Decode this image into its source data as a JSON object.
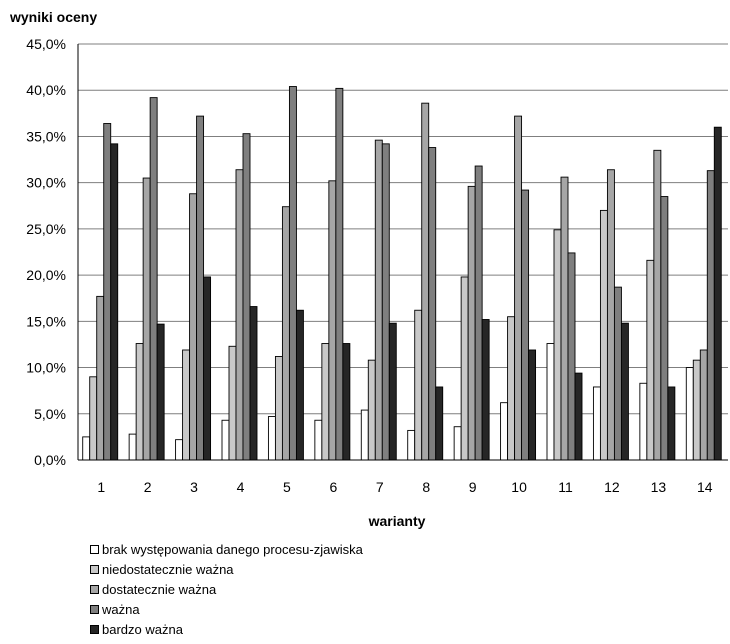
{
  "chart_data": {
    "type": "bar",
    "title": "wyniki oceny",
    "xlabel": "warianty",
    "ylabel": "",
    "ylim": [
      0,
      45
    ],
    "yticks": [
      "0,0%",
      "5,0%",
      "10,0%",
      "15,0%",
      "20,0%",
      "25,0%",
      "30,0%",
      "35,0%",
      "40,0%",
      "45,0%"
    ],
    "grid": true,
    "legend_position": "bottom-left",
    "categories": [
      "1",
      "2",
      "3",
      "4",
      "5",
      "6",
      "7",
      "8",
      "9",
      "10",
      "11",
      "12",
      "13",
      "14"
    ],
    "series": [
      {
        "name": "brak występowania danego procesu-zjawiska",
        "color": "#ffffff",
        "values": [
          2.5,
          2.8,
          2.2,
          4.3,
          4.7,
          4.3,
          5.4,
          3.2,
          3.6,
          6.2,
          12.6,
          7.9,
          8.3,
          10.0
        ]
      },
      {
        "name": "niedostatecznie ważna",
        "color": "#c8c8c8",
        "values": [
          9.0,
          12.6,
          11.9,
          12.3,
          11.2,
          12.6,
          10.8,
          16.2,
          19.8,
          15.5,
          24.9,
          27.0,
          21.6,
          10.8
        ]
      },
      {
        "name": "dostatecznie ważna",
        "color": "#a6a6a6",
        "values": [
          17.7,
          30.5,
          28.8,
          31.4,
          27.4,
          30.2,
          34.6,
          38.6,
          29.6,
          37.2,
          30.6,
          31.4,
          33.5,
          11.9
        ]
      },
      {
        "name": "ważna",
        "color": "#7f7f7f",
        "values": [
          36.4,
          39.2,
          37.2,
          35.3,
          40.4,
          40.2,
          34.2,
          33.8,
          31.8,
          29.2,
          22.4,
          18.7,
          28.5,
          31.3
        ]
      },
      {
        "name": "bardzo ważna",
        "color": "#262626",
        "values": [
          34.2,
          14.7,
          19.8,
          16.6,
          16.2,
          12.6,
          14.8,
          7.9,
          15.2,
          11.9,
          9.4,
          14.8,
          7.9,
          36.0
        ]
      }
    ]
  }
}
